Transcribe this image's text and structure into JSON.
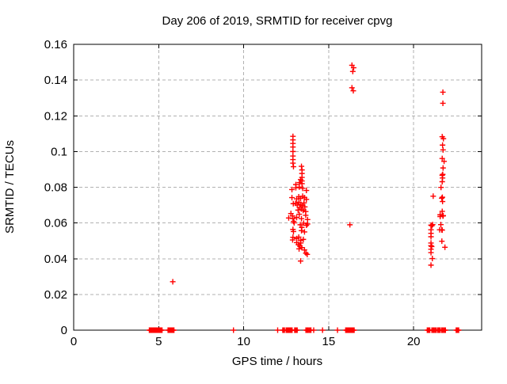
{
  "chart_data": {
    "type": "scatter",
    "title": "Day 206 of 2019, SRMTID for receiver cpvg",
    "xlabel": "GPS time / hours",
    "ylabel": "SRMTID / TECUs",
    "xlim": [
      0,
      24
    ],
    "ylim": [
      0,
      0.16
    ],
    "xticks": [
      0,
      5,
      10,
      15,
      20
    ],
    "xtick_labels": [
      "0",
      "5",
      "10",
      "15",
      "20"
    ],
    "yticks": [
      0,
      0.02,
      0.04,
      0.06,
      0.08,
      0.1,
      0.12,
      0.14,
      0.16
    ],
    "ytick_labels": [
      "0",
      "0.02",
      "0.04",
      "0.06",
      "0.08",
      "0.1",
      "0.12",
      "0.14",
      "0.16"
    ],
    "grid": true,
    "legend": "none",
    "marker": "plus",
    "marker_color": "#ff0000",
    "grid_color": "#b1b1b1",
    "border_color": "#000000",
    "series_name": "SRMTID",
    "points": [
      [
        5.83,
        0.0271
      ],
      [
        12.9,
        0.1085
      ],
      [
        12.9,
        0.1065
      ],
      [
        12.9,
        0.1045
      ],
      [
        12.9,
        0.1025
      ],
      [
        12.9,
        0.1
      ],
      [
        12.9,
        0.0975
      ],
      [
        12.9,
        0.0955
      ],
      [
        12.9,
        0.0935
      ],
      [
        12.93,
        0.0915
      ],
      [
        13.4,
        0.0917
      ],
      [
        13.43,
        0.0897
      ],
      [
        13.43,
        0.0877
      ],
      [
        13.43,
        0.0855
      ],
      [
        13.43,
        0.0835
      ],
      [
        13.43,
        0.082
      ],
      [
        13.07,
        0.0815
      ],
      [
        13.28,
        0.0826
      ],
      [
        13.35,
        0.0843
      ],
      [
        12.84,
        0.0787
      ],
      [
        13.07,
        0.0797
      ],
      [
        13.27,
        0.0801
      ],
      [
        13.47,
        0.0794
      ],
      [
        13.69,
        0.0782
      ],
      [
        12.84,
        0.0742
      ],
      [
        13.12,
        0.0735
      ],
      [
        13.24,
        0.0747
      ],
      [
        13.35,
        0.0738
      ],
      [
        13.47,
        0.075
      ],
      [
        13.58,
        0.0742
      ],
      [
        13.69,
        0.0732
      ],
      [
        12.92,
        0.0708
      ],
      [
        13.05,
        0.071
      ],
      [
        13.15,
        0.07
      ],
      [
        13.25,
        0.0716
      ],
      [
        13.35,
        0.0704
      ],
      [
        13.45,
        0.0698
      ],
      [
        13.55,
        0.0712
      ],
      [
        13.3,
        0.0688
      ],
      [
        13.4,
        0.0678
      ],
      [
        13.5,
        0.067
      ],
      [
        13.2,
        0.0672
      ],
      [
        13.6,
        0.069
      ],
      [
        13.65,
        0.0664
      ],
      [
        12.65,
        0.0628
      ],
      [
        12.78,
        0.0653
      ],
      [
        12.9,
        0.0624
      ],
      [
        12.94,
        0.0609
      ],
      [
        12.88,
        0.0639
      ],
      [
        13.12,
        0.0631
      ],
      [
        13.27,
        0.0649
      ],
      [
        13.4,
        0.0624
      ],
      [
        13.65,
        0.0643
      ],
      [
        13.76,
        0.0619
      ],
      [
        12.97,
        0.0601
      ],
      [
        13.33,
        0.059
      ],
      [
        13.53,
        0.0599
      ],
      [
        13.69,
        0.0587
      ],
      [
        13.76,
        0.0594
      ],
      [
        13.42,
        0.0575
      ],
      [
        12.9,
        0.0564
      ],
      [
        12.93,
        0.0552
      ],
      [
        13.4,
        0.0557
      ],
      [
        13.58,
        0.055
      ],
      [
        12.9,
        0.052
      ],
      [
        12.88,
        0.0505
      ],
      [
        13.12,
        0.0513
      ],
      [
        13.24,
        0.0521
      ],
      [
        13.35,
        0.0502
      ],
      [
        13.51,
        0.0508
      ],
      [
        13.12,
        0.049
      ],
      [
        13.22,
        0.0479
      ],
      [
        13.3,
        0.047
      ],
      [
        13.36,
        0.0488
      ],
      [
        13.42,
        0.0462
      ],
      [
        13.26,
        0.0455
      ],
      [
        13.58,
        0.0449
      ],
      [
        13.66,
        0.0431
      ],
      [
        13.74,
        0.0424
      ],
      [
        13.35,
        0.0387
      ],
      [
        16.37,
        0.1483
      ],
      [
        16.47,
        0.1469
      ],
      [
        16.42,
        0.1448
      ],
      [
        16.37,
        0.1357
      ],
      [
        16.45,
        0.134
      ],
      [
        16.25,
        0.059
      ],
      [
        21.15,
        0.075
      ],
      [
        21.02,
        0.0588
      ],
      [
        21.07,
        0.0584
      ],
      [
        21.12,
        0.0591
      ],
      [
        21.02,
        0.0562
      ],
      [
        21.02,
        0.0542
      ],
      [
        21.02,
        0.0523
      ],
      [
        21.02,
        0.0488
      ],
      [
        21.02,
        0.0473
      ],
      [
        21.06,
        0.0468
      ],
      [
        21.02,
        0.0453
      ],
      [
        21.02,
        0.0434
      ],
      [
        21.1,
        0.0401
      ],
      [
        21.02,
        0.0364
      ],
      [
        21.72,
        0.1332
      ],
      [
        21.72,
        0.127
      ],
      [
        21.68,
        0.1083
      ],
      [
        21.75,
        0.1072
      ],
      [
        21.7,
        0.1036
      ],
      [
        21.73,
        0.1009
      ],
      [
        21.68,
        0.0961
      ],
      [
        21.79,
        0.0945
      ],
      [
        21.73,
        0.0908
      ],
      [
        21.68,
        0.0867
      ],
      [
        21.71,
        0.0872
      ],
      [
        21.7,
        0.0852
      ],
      [
        21.68,
        0.0831
      ],
      [
        21.61,
        0.0799
      ],
      [
        21.65,
        0.0739
      ],
      [
        21.69,
        0.0744
      ],
      [
        21.7,
        0.072
      ],
      [
        21.68,
        0.0665
      ],
      [
        21.56,
        0.0646
      ],
      [
        21.74,
        0.0641
      ],
      [
        21.56,
        0.0636
      ],
      [
        21.72,
        0.0639
      ],
      [
        21.6,
        0.0591
      ],
      [
        21.53,
        0.0562
      ],
      [
        21.65,
        0.0562
      ],
      [
        21.68,
        0.056
      ],
      [
        21.66,
        0.0498
      ],
      [
        21.84,
        0.0464
      ],
      [
        4.45,
        0
      ],
      [
        4.5,
        0
      ],
      [
        4.55,
        0
      ],
      [
        4.6,
        0
      ],
      [
        4.65,
        0
      ],
      [
        4.7,
        0
      ],
      [
        4.75,
        0
      ],
      [
        4.8,
        0
      ],
      [
        4.85,
        0
      ],
      [
        4.9,
        0
      ],
      [
        4.95,
        0
      ],
      [
        5.0,
        0
      ],
      [
        5.05,
        0
      ],
      [
        5.1,
        0
      ],
      [
        5.15,
        0
      ],
      [
        5.2,
        0
      ],
      [
        5.55,
        0
      ],
      [
        5.6,
        0
      ],
      [
        5.65,
        0
      ],
      [
        5.7,
        0
      ],
      [
        5.75,
        0
      ],
      [
        5.8,
        0
      ],
      [
        5.85,
        0
      ],
      [
        5.9,
        0
      ],
      [
        9.4,
        0
      ],
      [
        12.0,
        0
      ],
      [
        12.3,
        0
      ],
      [
        12.35,
        0
      ],
      [
        12.4,
        0
      ],
      [
        12.5,
        0
      ],
      [
        12.55,
        0
      ],
      [
        12.6,
        0
      ],
      [
        12.65,
        0
      ],
      [
        12.7,
        0
      ],
      [
        12.75,
        0
      ],
      [
        12.8,
        0
      ],
      [
        12.85,
        0
      ],
      [
        13.0,
        0
      ],
      [
        13.05,
        0
      ],
      [
        13.1,
        0
      ],
      [
        13.15,
        0
      ],
      [
        13.66,
        0
      ],
      [
        13.72,
        0
      ],
      [
        13.78,
        0
      ],
      [
        13.84,
        0
      ],
      [
        13.9,
        0
      ],
      [
        13.96,
        0
      ],
      [
        14.12,
        0
      ],
      [
        14.64,
        0
      ],
      [
        15.52,
        0
      ],
      [
        16.0,
        0
      ],
      [
        16.05,
        0
      ],
      [
        16.1,
        0
      ],
      [
        16.15,
        0
      ],
      [
        16.2,
        0
      ],
      [
        16.25,
        0
      ],
      [
        16.3,
        0
      ],
      [
        16.35,
        0
      ],
      [
        16.4,
        0
      ],
      [
        16.45,
        0
      ],
      [
        16.5,
        0
      ],
      [
        20.8,
        0
      ],
      [
        20.85,
        0
      ],
      [
        20.9,
        0
      ],
      [
        20.95,
        0
      ],
      [
        21.07,
        0
      ],
      [
        21.13,
        0
      ],
      [
        21.19,
        0
      ],
      [
        21.25,
        0
      ],
      [
        21.31,
        0
      ],
      [
        21.4,
        0
      ],
      [
        21.45,
        0
      ],
      [
        21.5,
        0
      ],
      [
        21.55,
        0
      ],
      [
        21.64,
        0
      ],
      [
        21.7,
        0
      ],
      [
        21.76,
        0
      ],
      [
        21.82,
        0
      ],
      [
        21.87,
        0
      ],
      [
        22.5,
        0
      ],
      [
        22.55,
        0
      ],
      [
        22.6,
        0
      ],
      [
        22.65,
        0
      ]
    ]
  }
}
